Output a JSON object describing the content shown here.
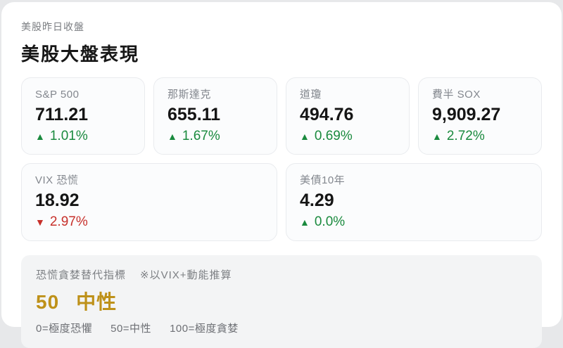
{
  "page": {
    "eyebrow": "美股昨日收盤",
    "title": "美股大盤表現"
  },
  "colors": {
    "up_green": "#1a8a3e",
    "down_red": "#c7302b",
    "neutral_gold": "#be9119",
    "card_background": "#fbfcfd",
    "panel_background": "#f3f4f5"
  },
  "metrics": [
    {
      "label": "S&P 500",
      "value": "711.21",
      "arrow": "▲",
      "change": "1.01%",
      "direction": "up"
    },
    {
      "label": "那斯達克",
      "value": "655.11",
      "arrow": "▲",
      "change": "1.67%",
      "direction": "up"
    },
    {
      "label": "道瓊",
      "value": "494.76",
      "arrow": "▲",
      "change": "0.69%",
      "direction": "up"
    },
    {
      "label": "費半 SOX",
      "value": "9,909.27",
      "arrow": "▲",
      "change": "2.72%",
      "direction": "up"
    },
    {
      "label": "VIX 恐慌",
      "value": "18.92",
      "arrow": "▼",
      "change": "2.97%",
      "direction": "down"
    },
    {
      "label": "美債10年",
      "value": "4.29",
      "arrow": "▲",
      "change": "0.0%",
      "direction": "up"
    }
  ],
  "fear_greed": {
    "label": "恐慌貪婪替代指標",
    "note": "※以VIX+動能推算",
    "score": "50",
    "status": "中性",
    "legend": [
      "0=極度恐懼",
      "50=中性",
      "100=極度貪婪"
    ]
  }
}
